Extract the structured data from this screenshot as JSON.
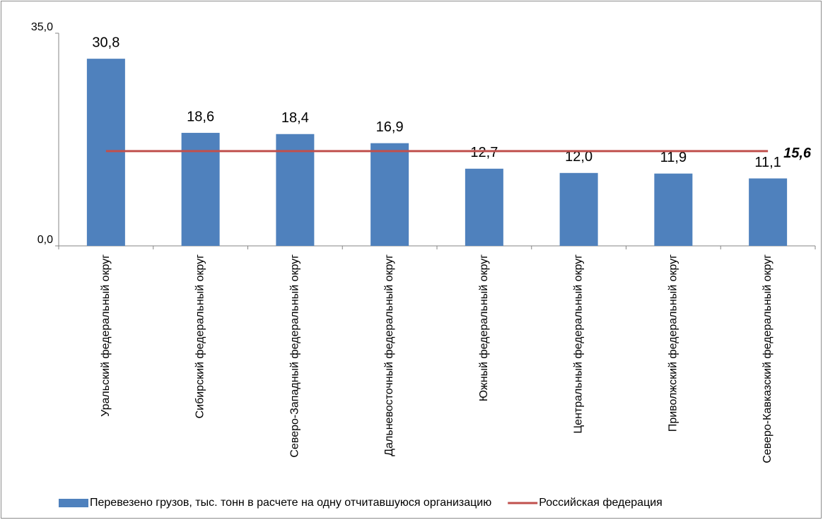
{
  "chart_data": {
    "type": "bar",
    "categories": [
      "Уральский федеральный округ",
      "Сибирский федеральный округ",
      "Северо-Западный федеральный округ",
      "Дальневосточный федеральный округ",
      "Южный федеральный округ",
      "Центральный федеральный округ",
      "Приволжский федеральный округ",
      "Северо-Кавказский федеральный округ"
    ],
    "series": [
      {
        "name": "Перевезено грузов, тыс. тонн в расчете на одну отчитавшуюся организацию",
        "type": "bar",
        "color": "#4f81bd",
        "values": [
          30.8,
          18.6,
          18.4,
          16.9,
          12.7,
          12.0,
          11.9,
          11.1
        ],
        "value_labels": [
          "30,8",
          "18,6",
          "18,4",
          "16,9",
          "12,7",
          "12,0",
          "11,9",
          "11,1"
        ]
      },
      {
        "name": "Российская федерация",
        "type": "line",
        "color": "#c0504d",
        "values": [
          15.6,
          15.6,
          15.6,
          15.6,
          15.6,
          15.6,
          15.6,
          15.6
        ],
        "value_labels": [
          null,
          null,
          null,
          null,
          null,
          null,
          null,
          "15,6"
        ]
      }
    ],
    "ylim": [
      0,
      35
    ],
    "yticks": [
      {
        "value": 0,
        "label": "0,0"
      },
      {
        "value": 35,
        "label": "35,0"
      }
    ],
    "legend": "bottom"
  }
}
